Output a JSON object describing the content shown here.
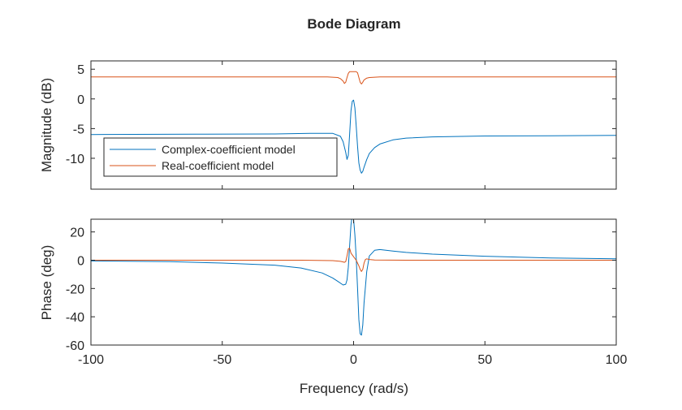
{
  "chart_data": [
    {
      "type": "line",
      "title": "Bode Diagram",
      "xlabel": "Frequency (rad/s)",
      "ylabel": "Magnitude (dB)",
      "xlim": [
        -100,
        100
      ],
      "ylim": [
        -15.2,
        6.4
      ],
      "yticks": [
        5,
        0,
        -5,
        -10
      ],
      "ytick_labels": [
        "5",
        "0",
        "-5",
        "-10"
      ],
      "legend": {
        "placement": "bottom-left",
        "entries": [
          "Complex-coefficient model",
          "Real-coefficient model"
        ]
      },
      "series": [
        {
          "name": "Complex-coefficient model",
          "color": "#0072BD",
          "x": [
            -100,
            -60,
            -30,
            -15,
            -8,
            -5,
            -4,
            -3,
            -2.5,
            -2,
            -1.5,
            -1,
            -0.5,
            0,
            0.5,
            1,
            1.5,
            2,
            2.5,
            3,
            3.5,
            4,
            5,
            6,
            8,
            10,
            15,
            20,
            30,
            50,
            75,
            100
          ],
          "y": [
            -6.0,
            -5.95,
            -5.9,
            -5.8,
            -5.8,
            -6.3,
            -7.2,
            -9,
            -10.2,
            -9.5,
            -6,
            -2,
            -0.4,
            -0.2,
            -1.5,
            -4.5,
            -8,
            -10.8,
            -12,
            -12.5,
            -12.2,
            -11.5,
            -10.2,
            -9.2,
            -8.2,
            -7.6,
            -6.9,
            -6.6,
            -6.4,
            -6.25,
            -6.2,
            -6.15
          ]
        },
        {
          "name": "Real-coefficient model",
          "color": "#D95319",
          "x": [
            -100,
            -50,
            -10,
            -6,
            -5,
            -4,
            -3.5,
            -3,
            -2.5,
            -2,
            -1.5,
            -1,
            0,
            1,
            1.5,
            2,
            2.5,
            3,
            3.5,
            4,
            5,
            6,
            10,
            50,
            100
          ],
          "y": [
            3.7,
            3.7,
            3.7,
            3.6,
            3.4,
            3.0,
            2.6,
            2.8,
            3.6,
            4.3,
            4.6,
            4.6,
            4.6,
            4.6,
            4.4,
            3.6,
            2.8,
            2.5,
            2.8,
            3.2,
            3.5,
            3.6,
            3.7,
            3.7,
            3.7
          ]
        }
      ]
    },
    {
      "type": "line",
      "xlabel": "Frequency (rad/s)",
      "ylabel": "Phase (deg)",
      "xlim": [
        -100,
        100
      ],
      "ylim": [
        -60,
        29
      ],
      "yticks": [
        20,
        0,
        -20,
        -40,
        -60
      ],
      "ytick_labels": [
        "20",
        "0",
        "-20",
        "-40",
        "-60"
      ],
      "xticks": [
        -100,
        -50,
        0,
        50,
        100
      ],
      "xtick_labels": [
        "-100",
        "-50",
        "0",
        "50",
        "100"
      ],
      "series": [
        {
          "name": "Complex-coefficient model",
          "color": "#0072BD",
          "x": [
            -100,
            -70,
            -50,
            -30,
            -20,
            -12,
            -8,
            -6,
            -4,
            -3,
            -2.5,
            -2,
            -1.5,
            -1,
            -0.5,
            0,
            0.5,
            1,
            1.5,
            2,
            2.5,
            3,
            3.5,
            4,
            5,
            6,
            8,
            10,
            15,
            20,
            30,
            50,
            75,
            100
          ],
          "y": [
            -0.5,
            -1,
            -2,
            -3.5,
            -5.5,
            -9,
            -12.5,
            -15,
            -17.5,
            -17,
            -14,
            -5,
            10,
            25,
            32,
            29,
            18,
            2,
            -20,
            -42,
            -52,
            -53,
            -46,
            -30,
            -8,
            3,
            7,
            7.5,
            6.5,
            5.5,
            4.3,
            2.8,
            1.6,
            1
          ]
        },
        {
          "name": "Real-coefficient model",
          "color": "#D95319",
          "x": [
            -100,
            -20,
            -8,
            -5,
            -4,
            -3.5,
            -3,
            -2.5,
            -2,
            -1.5,
            -1,
            0,
            1,
            2,
            2.5,
            3,
            3.5,
            4,
            4.5,
            5,
            6,
            8,
            20,
            100
          ],
          "y": [
            0,
            0,
            -0.3,
            -0.8,
            -1.2,
            -1.5,
            -1,
            3,
            8,
            8.5,
            5,
            2.5,
            0,
            -4,
            -6.5,
            -8,
            -6.5,
            -2,
            0.5,
            1,
            0.5,
            0.2,
            0,
            0
          ]
        }
      ]
    }
  ]
}
